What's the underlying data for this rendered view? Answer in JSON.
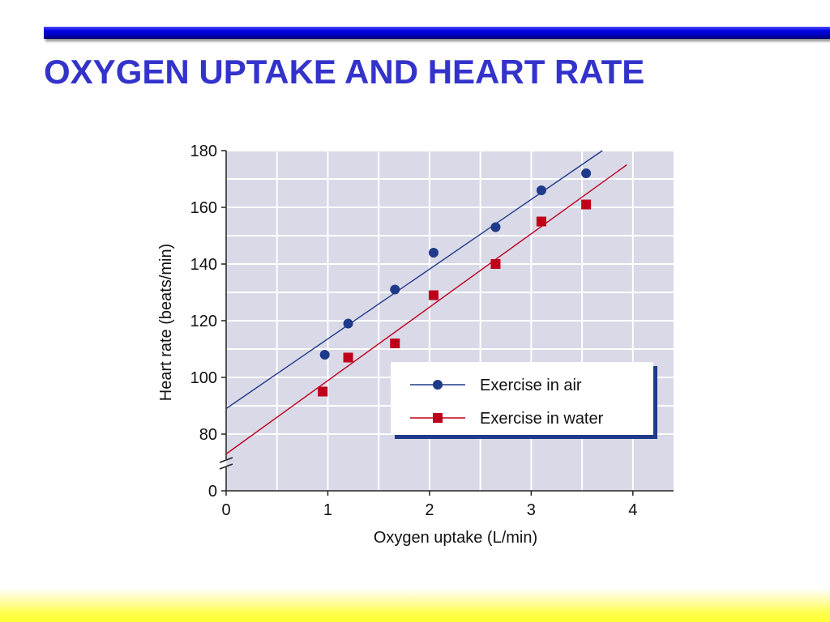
{
  "slide": {
    "title": "OXYGEN UPTAKE AND HEART RATE"
  },
  "colors": {
    "title": "#3333cc",
    "plot_background": "#d9d9e8",
    "grid": "#ffffff",
    "series_air": "#1f3a8a",
    "series_water": "#c0001a",
    "legend_shadow": "#1f3a8a"
  },
  "chart_data": {
    "type": "scatter",
    "xlabel": "Oxygen uptake (L/min)",
    "ylabel": "Heart rate (beats/min)",
    "xlim": [
      0,
      4.4
    ],
    "ylim": [
      70,
      180
    ],
    "axis_break_y": true,
    "x_ticks": [
      0,
      1,
      2,
      3,
      4
    ],
    "x_tick_labels": [
      "0",
      "1",
      "2",
      "3",
      "4"
    ],
    "y_ticks": [
      80,
      100,
      120,
      140,
      160,
      180
    ],
    "y_tick_labels": [
      "80",
      "100",
      "120",
      "140",
      "160",
      "180"
    ],
    "y_zero_label": "0",
    "grid": true,
    "legend_position": "lower-right",
    "series": [
      {
        "name": "Exercise in air",
        "marker": "circle",
        "x": [
          0.97,
          1.2,
          1.66,
          2.04,
          2.65,
          3.1,
          3.54
        ],
        "y": [
          108,
          119,
          131,
          144,
          153,
          166,
          172
        ],
        "fit_line": [
          [
            0,
            89
          ],
          [
            3.7,
            180
          ]
        ]
      },
      {
        "name": "Exercise in water",
        "marker": "square",
        "x": [
          0.95,
          1.2,
          1.66,
          2.04,
          2.65,
          3.1,
          3.54
        ],
        "y": [
          95,
          107,
          112,
          129,
          140,
          155,
          161
        ],
        "fit_line": [
          [
            0,
            73
          ],
          [
            3.94,
            175
          ]
        ]
      }
    ]
  }
}
